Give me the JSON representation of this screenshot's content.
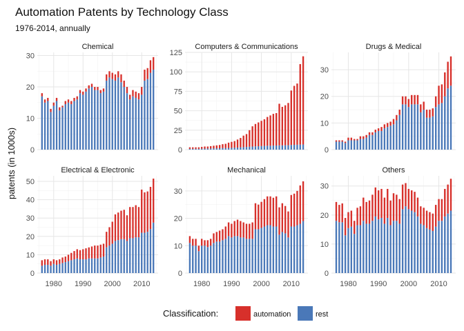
{
  "chart_data": {
    "type": "bar",
    "stacked": true,
    "facet": true,
    "title": "Automation Patents by Technology Class",
    "subtitle": "1976-2014, annually",
    "ylabel": "patents (in 1000s)",
    "xlabel": "",
    "x_ticks": [
      1980,
      1990,
      2000,
      2010
    ],
    "years": [
      1976,
      1977,
      1978,
      1979,
      1980,
      1981,
      1982,
      1983,
      1984,
      1985,
      1986,
      1987,
      1988,
      1989,
      1990,
      1991,
      1992,
      1993,
      1994,
      1995,
      1996,
      1997,
      1998,
      1999,
      2000,
      2001,
      2002,
      2003,
      2004,
      2005,
      2006,
      2007,
      2008,
      2009,
      2010,
      2011,
      2012,
      2013,
      2014
    ],
    "grid": true,
    "legend": {
      "title": "Classification:",
      "position": "bottom",
      "items": [
        {
          "label": "automation",
          "color": "#d7302b"
        },
        {
          "label": "rest",
          "color": "#4a78b8"
        }
      ]
    },
    "panels": [
      {
        "name": "Chemical",
        "ylim": [
          0,
          31
        ],
        "yticks": [
          0,
          10,
          20,
          30
        ],
        "totals": [
          18,
          16,
          16.5,
          13,
          15,
          16.5,
          13.5,
          14,
          15.5,
          16,
          15.5,
          16.5,
          17,
          19,
          18.5,
          19.5,
          20.5,
          21,
          20,
          20,
          19,
          19.5,
          24,
          25,
          24.5,
          24,
          25,
          24,
          22,
          20,
          17.5,
          19,
          18.5,
          18,
          20,
          25.5,
          26,
          28.5,
          29.5
        ],
        "rest": [
          17,
          15,
          15.5,
          12,
          14,
          15.5,
          12.5,
          13.5,
          14.5,
          15,
          14.5,
          15.5,
          16,
          18,
          17.5,
          18.5,
          19.5,
          20,
          19,
          19,
          18,
          18.5,
          22,
          23,
          22.5,
          22,
          23,
          21.5,
          20,
          18,
          16,
          17,
          16.5,
          16,
          17.5,
          22,
          22.5,
          24.5,
          25.5
        ]
      },
      {
        "name": "Computers & Communications",
        "ylim": [
          0,
          125
        ],
        "yticks": [
          0,
          25,
          50,
          75,
          100,
          125
        ],
        "totals": [
          3,
          3,
          3,
          3,
          3.5,
          4,
          4,
          4.5,
          5,
          5.5,
          6,
          7,
          7.5,
          9,
          10,
          11,
          13,
          15,
          18,
          20,
          25,
          30,
          33,
          35,
          37,
          39,
          42,
          44,
          46,
          47,
          59,
          55,
          57,
          60,
          76,
          82,
          85,
          110,
          120
        ],
        "rest": [
          1,
          1,
          1,
          1,
          1.2,
          1.3,
          1.4,
          1.5,
          1.6,
          1.7,
          1.8,
          2,
          2,
          2.2,
          2.3,
          2.5,
          2.7,
          3,
          3.2,
          3.5,
          3.8,
          4,
          4.2,
          4.4,
          4.6,
          4.8,
          5,
          5,
          5.2,
          5.3,
          5.5,
          5.5,
          5.6,
          5.7,
          6,
          6.2,
          6.3,
          6.5,
          6.6
        ]
      },
      {
        "name": "Drugs & Medical",
        "ylim": [
          0,
          36.5
        ],
        "yticks": [
          0,
          10,
          20,
          30
        ],
        "totals": [
          3.5,
          3.5,
          3.5,
          3,
          4.5,
          4.5,
          4,
          4,
          5,
          5,
          5.5,
          6.5,
          6.5,
          7.5,
          8,
          8.5,
          9.5,
          10,
          10.5,
          11.5,
          13,
          15,
          20,
          20,
          19,
          20.5,
          20.5,
          20.5,
          17,
          18,
          15,
          15,
          15.5,
          20,
          24,
          24.5,
          29,
          33,
          35
        ],
        "rest": [
          3,
          3,
          3,
          2.5,
          3.5,
          3.5,
          3.5,
          3.5,
          4,
          4,
          4.5,
          5.5,
          5.5,
          6.5,
          7,
          7,
          8,
          8.5,
          9,
          9.5,
          11,
          13,
          17,
          17,
          16,
          17,
          17,
          17,
          14,
          15,
          12,
          12,
          12.5,
          16,
          17,
          17.5,
          20,
          23,
          24
        ]
      },
      {
        "name": "Electrical & Electronic",
        "ylim": [
          0,
          53
        ],
        "yticks": [
          0,
          10,
          20,
          30,
          40,
          50
        ],
        "totals": [
          7,
          7.5,
          7.5,
          6.5,
          7.5,
          7,
          7.5,
          8.5,
          9,
          10,
          11,
          12,
          13,
          12.5,
          13,
          13.5,
          14,
          14.5,
          15,
          15,
          15.5,
          16,
          22.5,
          25,
          28,
          32,
          33,
          34,
          34.5,
          31.5,
          36,
          36,
          37,
          36,
          45.5,
          44,
          44.5,
          47,
          51.5
        ],
        "rest": [
          4,
          4.5,
          4.5,
          4,
          5,
          4.5,
          5,
          5.5,
          6,
          6.5,
          7,
          7.5,
          8,
          7.5,
          7.5,
          7.5,
          8,
          8,
          8,
          8,
          8.5,
          9,
          14,
          15,
          16,
          17.5,
          18,
          18.5,
          18.5,
          17.5,
          19,
          19,
          19.5,
          19.5,
          22,
          22,
          22.5,
          24,
          27.5
        ]
      },
      {
        "name": "Mechanical",
        "ylim": [
          0,
          35.5
        ],
        "yticks": [
          0,
          10,
          20,
          30
        ],
        "totals": [
          13.5,
          12.5,
          12.5,
          10,
          12.5,
          12,
          12,
          12.5,
          14.5,
          15,
          15.5,
          16,
          17,
          18.5,
          18,
          19,
          19.5,
          19,
          18.5,
          18,
          18,
          18.5,
          25.5,
          25,
          26,
          27,
          28,
          28,
          27.5,
          28,
          24,
          25.5,
          24.5,
          22.5,
          28.5,
          29,
          30,
          32,
          33.5
        ],
        "rest": [
          11,
          10,
          10,
          8,
          10,
          10,
          9.5,
          10,
          11,
          11.5,
          11.5,
          12,
          12.5,
          13.5,
          13,
          13.5,
          13.5,
          13,
          13,
          12.5,
          12.5,
          12.5,
          16,
          16,
          16.5,
          17,
          17.5,
          17.5,
          17,
          17,
          14,
          15,
          14.5,
          13,
          17,
          17,
          17.5,
          18,
          19
        ]
      },
      {
        "name": "Others",
        "ylim": [
          0,
          33.5
        ],
        "yticks": [
          0,
          10,
          20,
          30
        ],
        "totals": [
          24.5,
          23.5,
          24,
          19,
          21,
          21.5,
          18,
          22.5,
          23,
          26,
          24.5,
          25,
          27,
          29.5,
          28.5,
          29,
          26,
          29,
          25,
          27.5,
          27,
          25.5,
          30.5,
          31,
          29,
          28.5,
          28,
          26,
          23,
          22.5,
          21.5,
          21,
          20.5,
          23.5,
          25.5,
          25.5,
          29,
          30.5,
          32.5
        ],
        "rest": [
          18,
          17.5,
          17.5,
          13,
          15.5,
          16,
          13.5,
          16.5,
          16.5,
          18,
          17,
          17,
          18,
          19.5,
          18.5,
          19,
          17,
          19,
          16.5,
          18,
          18,
          17,
          22,
          23,
          22,
          21.5,
          21,
          19.5,
          17,
          16.5,
          15.5,
          15,
          14.5,
          16,
          18,
          18,
          19.5,
          20.5,
          21.5
        ]
      }
    ]
  }
}
